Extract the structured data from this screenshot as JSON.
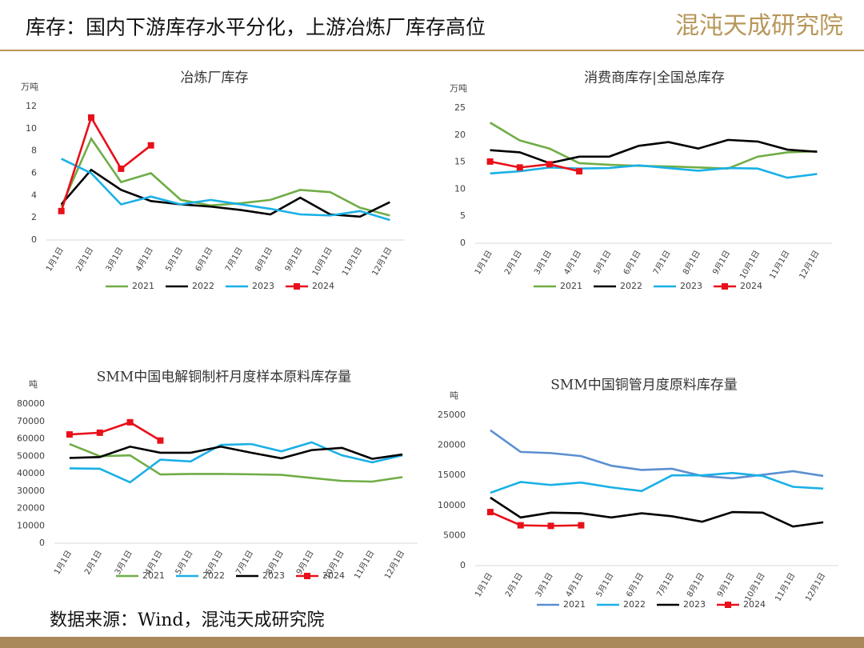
{
  "header": {
    "title": "库存：国内下游库存水平分化，上游冶炼厂库存高位",
    "logo": "混沌天成研究院"
  },
  "source": "数据来源：Wind，混沌天成研究院",
  "chart_data": [
    {
      "type": "line",
      "title": "冶炼厂库存",
      "unit": "万吨",
      "legend": "bottom",
      "categories": [
        "1月1日",
        "2月1日",
        "3月1日",
        "4月1日",
        "5月1日",
        "6月1日",
        "7月1日",
        "8月1日",
        "9月1日",
        "10月1日",
        "11月1日",
        "12月1日"
      ],
      "ylim": [
        0,
        12
      ],
      "yticks": [
        0,
        2,
        4,
        6,
        8,
        10,
        12
      ],
      "series": [
        {
          "name": "2021",
          "color": "#70ad47",
          "values": [
            3.0,
            9.1,
            5.2,
            6.0,
            3.6,
            3.1,
            3.3,
            3.6,
            4.5,
            4.3,
            2.9,
            2.2
          ]
        },
        {
          "name": "2022",
          "color": "#000000",
          "values": [
            3.2,
            6.3,
            4.5,
            3.5,
            3.2,
            3.0,
            2.7,
            2.3,
            3.8,
            2.3,
            2.1,
            3.4
          ]
        },
        {
          "name": "2023",
          "color": "#1ab0e6",
          "values": [
            7.3,
            6.0,
            3.2,
            3.9,
            3.2,
            3.6,
            3.2,
            2.8,
            2.3,
            2.2,
            2.6,
            1.8
          ]
        },
        {
          "name": "2024",
          "color": "#e8101a",
          "marker": "square",
          "values": [
            2.6,
            11.0,
            6.4,
            8.5,
            null,
            null,
            null,
            null,
            null,
            null,
            null,
            null
          ]
        }
      ]
    },
    {
      "type": "line",
      "title": "消费商库存|全国总库存",
      "unit": "万吨",
      "legend": "bottom",
      "categories": [
        "1月1日",
        "2月1日",
        "3月1日",
        "4月1日",
        "5月1日",
        "6月1日",
        "7月1日",
        "8月1日",
        "9月1日",
        "10月1日",
        "11月1日",
        "12月1日"
      ],
      "ylim": [
        0,
        25
      ],
      "yticks": [
        0,
        5,
        10,
        15,
        20,
        25
      ],
      "series": [
        {
          "name": "2021",
          "color": "#70ad47",
          "values": [
            22.3,
            19.0,
            17.5,
            14.8,
            14.5,
            14.3,
            14.2,
            14.0,
            13.8,
            16.0,
            16.8,
            17.0
          ]
        },
        {
          "name": "2022",
          "color": "#000000",
          "values": [
            17.2,
            16.8,
            14.8,
            16.0,
            16.0,
            18.0,
            18.7,
            17.5,
            19.1,
            18.8,
            17.3,
            16.9
          ]
        },
        {
          "name": "2023",
          "color": "#1ab0e6",
          "values": [
            12.9,
            13.3,
            14.0,
            13.8,
            13.9,
            14.4,
            13.9,
            13.4,
            13.9,
            13.8,
            12.1,
            12.8
          ]
        },
        {
          "name": "2024",
          "color": "#e8101a",
          "marker": "square",
          "values": [
            15.1,
            14.0,
            14.6,
            13.3,
            null,
            null,
            null,
            null,
            null,
            null,
            null,
            null
          ]
        }
      ]
    },
    {
      "type": "line",
      "title": "SMM中国电解铜制杆月度样本原料库存量",
      "unit": "吨",
      "legend": "bottom",
      "categories": [
        "1月1日",
        "2月1日",
        "3月1日",
        "4月1日",
        "5月1日",
        "6月1日",
        "7月1日",
        "8月1日",
        "9月1日",
        "10月1日",
        "11月1日",
        "12月1日"
      ],
      "ylim": [
        0,
        80000
      ],
      "yticks": [
        0,
        10000,
        20000,
        30000,
        40000,
        50000,
        60000,
        70000,
        80000
      ],
      "series": [
        {
          "name": "2021",
          "color": "#70ad47",
          "values": [
            57000,
            50000,
            50500,
            39500,
            39800,
            39800,
            39600,
            39300,
            37500,
            35800,
            35400,
            38000
          ]
        },
        {
          "name": "2022",
          "color": "#1ab0e6",
          "values": [
            43000,
            42800,
            35000,
            48000,
            47000,
            56500,
            57000,
            52800,
            58000,
            50500,
            46500,
            50500
          ]
        },
        {
          "name": "2023",
          "color": "#000000",
          "values": [
            49000,
            49500,
            55500,
            52000,
            52000,
            55500,
            52000,
            48800,
            53500,
            54800,
            48500,
            51000
          ]
        },
        {
          "name": "2024",
          "color": "#e8101a",
          "marker": "square",
          "values": [
            62500,
            63500,
            69500,
            59000,
            null,
            null,
            null,
            null,
            null,
            null,
            null,
            null
          ]
        }
      ]
    },
    {
      "type": "line",
      "title": "SMM中国铜管月度原料库存量",
      "unit": "吨",
      "legend": "bottom",
      "categories": [
        "1月1日",
        "2月1日",
        "3月1日",
        "4月1日",
        "5月1日",
        "6月1日",
        "7月1日",
        "8月1日",
        "9月1日",
        "10月1日",
        "11月1日",
        "12月1日"
      ],
      "ylim": [
        0,
        25000
      ],
      "yticks": [
        0,
        5000,
        10000,
        15000,
        20000,
        25000
      ],
      "series": [
        {
          "name": "2021",
          "color": "#5b8fd0",
          "values": [
            22500,
            18900,
            18700,
            18200,
            16600,
            15900,
            16100,
            14900,
            14500,
            15100,
            15700,
            14900
          ]
        },
        {
          "name": "2022",
          "color": "#1ab0e6",
          "values": [
            12100,
            13900,
            13400,
            13800,
            13000,
            12400,
            15000,
            15000,
            15400,
            14900,
            13100,
            12800
          ]
        },
        {
          "name": "2023",
          "color": "#000000",
          "values": [
            11300,
            8000,
            8800,
            8700,
            8000,
            8700,
            8200,
            7300,
            8900,
            8800,
            6500,
            7200
          ]
        },
        {
          "name": "2024",
          "color": "#e8101a",
          "marker": "square",
          "values": [
            8900,
            6700,
            6600,
            6700,
            null,
            null,
            null,
            null,
            null,
            null,
            null,
            null
          ]
        }
      ]
    }
  ]
}
